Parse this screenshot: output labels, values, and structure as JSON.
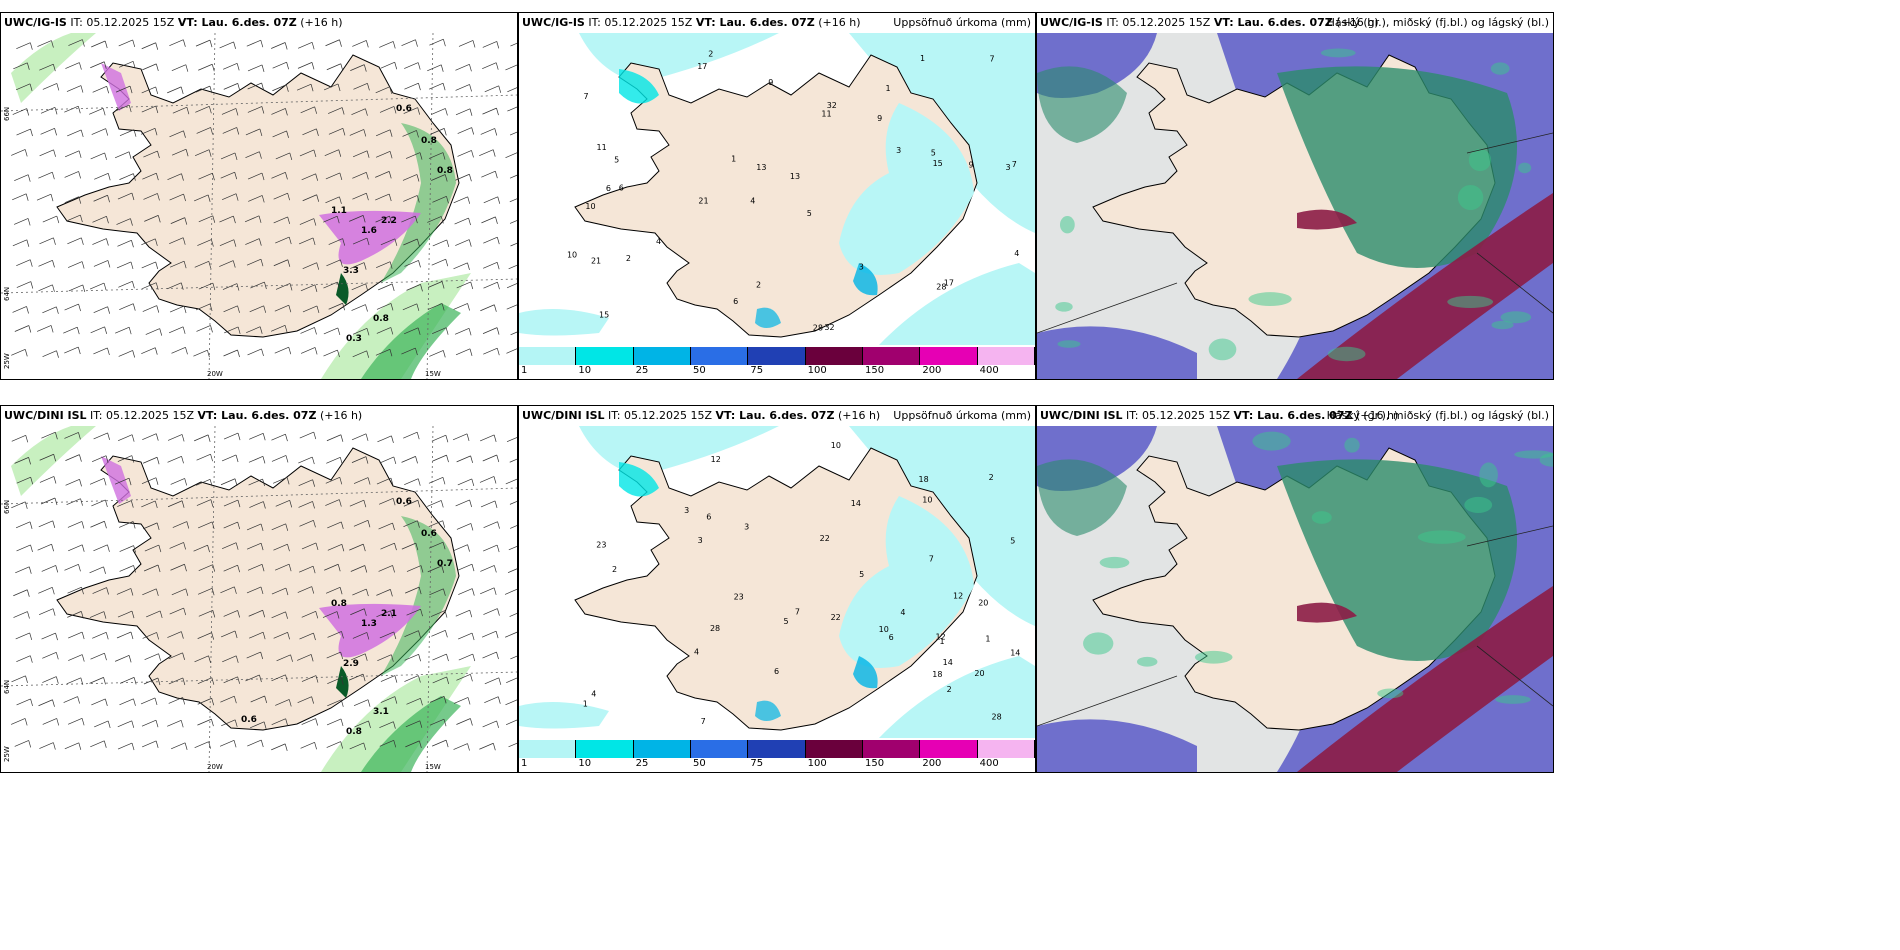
{
  "rows": [
    {
      "model": "UWC/IG-IS",
      "it_label": "IT: 05.12.2025 15Z",
      "vt_label": "VT: Lau. 6.des. 07Z",
      "lead": "(+16 h)",
      "precip_labels": [
        "0.6",
        "0.8",
        "0.8",
        "1.1",
        "1.6",
        "2.2",
        "3.3",
        "0.8",
        "0.3"
      ],
      "accum_labels": [
        "2",
        "1",
        "3",
        "4",
        "5",
        "6",
        "7",
        "9",
        "10",
        "11",
        "13",
        "15",
        "17",
        "21",
        "28",
        "32"
      ]
    },
    {
      "model": "UWC/DINI ISL",
      "it_label": "IT: 05.12.2025 15Z",
      "vt_label": "VT: Lau. 6.des. 07Z",
      "lead": "(+16 h)",
      "precip_labels": [
        "0.6",
        "0.6",
        "0.7",
        "0.8",
        "1.3",
        "2.1",
        "2.9",
        "3.1",
        "0.8",
        "0.6"
      ],
      "accum_labels": [
        "2",
        "1",
        "3",
        "4",
        "5",
        "6",
        "7",
        "10",
        "12",
        "14",
        "18",
        "20",
        "22",
        "23",
        "28"
      ]
    }
  ],
  "panel_titles": {
    "accum": "Uppsöfnuð úrkoma (mm)",
    "cloud": "Háský (gr.), miðský (fj.bl.) og lágský (bl.)"
  },
  "axis_labels": {
    "lat_top": "66N",
    "lat_bottom": "64N",
    "lat_low": "25W",
    "lon_left": "20W",
    "lon_right": "15W"
  },
  "colorbar": {
    "ticks": [
      "1",
      "10",
      "25",
      "50",
      "75",
      "100",
      "150",
      "200",
      "400"
    ],
    "colors": [
      "#b4f5f5",
      "#00e6e6",
      "#00b4e6",
      "#2a6ee6",
      "#2040b4",
      "#6a003c",
      "#a0006e",
      "#e600b4",
      "#f5b4f0"
    ]
  },
  "colors": {
    "land": "#f5e6d7",
    "sea": "#ffffff",
    "precip_light": "#c8f0c0",
    "precip_mid": "#3cb45a",
    "precip_heavy": "#0a5a28",
    "snow": "#d070e0",
    "accum_light": "#b8f6f6",
    "cloud_high": "#cfd2d2",
    "cloud_mid": "#5a5ac8",
    "cloud_low": "#2c8c6c",
    "cloud_red": "#8c1c46"
  }
}
